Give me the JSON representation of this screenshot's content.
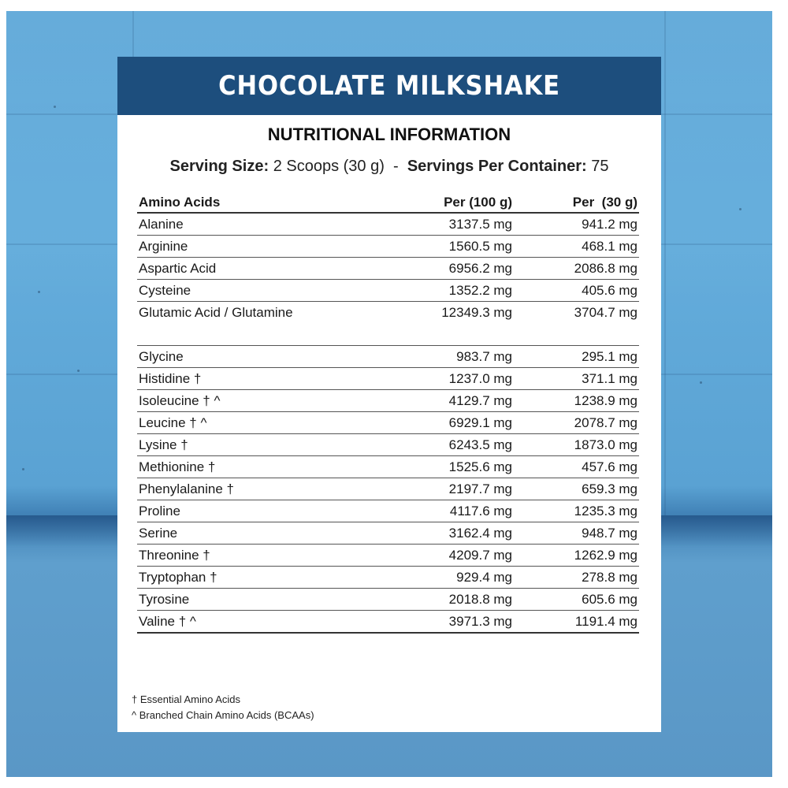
{
  "banner": {
    "title": "CHOCOLATE MILKSHAKE",
    "color": "#1d4e7d"
  },
  "nutrition": {
    "heading": "NUTRITIONAL INFORMATION",
    "serving_size_label": "Serving Size:",
    "serving_size_value": "2 Scoops (30 g)",
    "separator": "-",
    "servings_label": "Servings Per Container:",
    "servings_value": "75"
  },
  "table": {
    "headers": [
      "Amino Acids",
      "Per (100 g)",
      "Per  (30 g)"
    ],
    "rows": [
      [
        "Alanine",
        "3137.5 mg",
        "941.2 mg"
      ],
      [
        "Arginine",
        "1560.5 mg",
        "468.1 mg"
      ],
      [
        "Aspartic Acid",
        "6956.2 mg",
        "2086.8 mg"
      ],
      [
        "Cysteine",
        "1352.2 mg",
        "405.6 mg"
      ],
      [
        "Glutamic Acid / Glutamine",
        "12349.3 mg",
        "3704.7 mg"
      ],
      [
        "Glycine",
        "983.7 mg",
        "295.1 mg"
      ],
      [
        "Histidine †",
        "1237.0 mg",
        "371.1 mg"
      ],
      [
        "Isoleucine † ^",
        "4129.7 mg",
        "1238.9 mg"
      ],
      [
        "Leucine † ^",
        "6929.1 mg",
        "2078.7 mg"
      ],
      [
        "Lysine †",
        "6243.5 mg",
        "1873.0 mg"
      ],
      [
        "Methionine †",
        "1525.6 mg",
        "457.6 mg"
      ],
      [
        "Phenylalanine †",
        "2197.7 mg",
        "659.3 mg"
      ],
      [
        "Proline",
        "4117.6 mg",
        "1235.3 mg"
      ],
      [
        "Serine",
        "3162.4 mg",
        "948.7 mg"
      ],
      [
        "Threonine †",
        "4209.7 mg",
        "1262.9 mg"
      ],
      [
        "Tryptophan †",
        "929.4 mg",
        "278.8 mg"
      ],
      [
        "Tyrosine",
        "2018.8 mg",
        "605.6 mg"
      ],
      [
        "Valine † ^",
        "3971.3 mg",
        "1191.4 mg"
      ]
    ]
  },
  "footnotes": {
    "essential": "† Essential Amino Acids",
    "bcaa": "^ Branched Chain Amino Acids (BCAAs)"
  }
}
